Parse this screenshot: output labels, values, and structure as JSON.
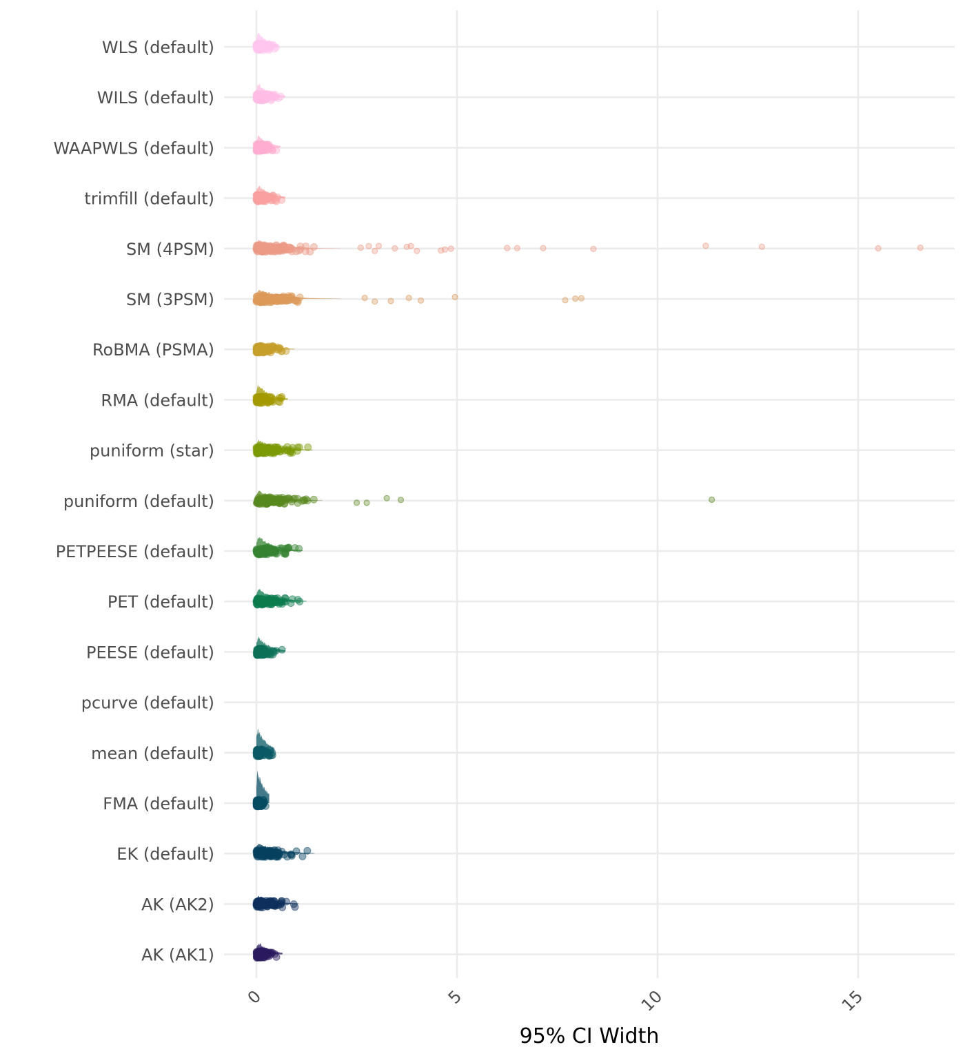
{
  "chart_data": {
    "type": "raincloud",
    "xlabel": "95% CI Width",
    "ylabel": "",
    "xlim": [
      -0.8,
      17.5
    ],
    "x_ticks": [
      0,
      5,
      10,
      15
    ],
    "grid": true,
    "legend": "none",
    "categories": [
      {
        "name": "WLS (default)",
        "color": "#FFC6F0",
        "density_peak": 0.05,
        "density_height": 1.0,
        "main_max": 0.55,
        "outliers": []
      },
      {
        "name": "WILS (default)",
        "color": "#FFBDE6",
        "density_peak": 0.06,
        "density_height": 0.95,
        "main_max": 0.72,
        "outliers": []
      },
      {
        "name": "WAAPWLS (default)",
        "color": "#FFADD0",
        "density_peak": 0.05,
        "density_height": 0.85,
        "main_max": 0.6,
        "outliers": []
      },
      {
        "name": "trimfill (default)",
        "color": "#F9A0A0",
        "density_peak": 0.06,
        "density_height": 0.9,
        "main_max": 0.72,
        "outliers": []
      },
      {
        "name": "SM (4PSM)",
        "color": "#EC9A86",
        "density_peak": 0.05,
        "density_height": 0.55,
        "main_max": 2.1,
        "outliers": [
          2.6,
          2.8,
          2.95,
          3.05,
          3.45,
          3.75,
          3.85,
          4.0,
          4.6,
          4.7,
          4.85,
          6.25,
          6.5,
          7.15,
          8.4,
          11.2,
          12.6,
          15.5,
          16.55
        ]
      },
      {
        "name": "SM (3PSM)",
        "color": "#DB9959",
        "density_peak": 0.06,
        "density_height": 0.65,
        "main_max": 2.1,
        "outliers": [
          2.7,
          2.95,
          3.35,
          3.8,
          4.1,
          4.95,
          7.7,
          7.95,
          8.1
        ]
      },
      {
        "name": "RoBMA (PSMA)",
        "color": "#C69E2A",
        "density_peak": 0.08,
        "density_height": 0.55,
        "main_max": 0.95,
        "outliers": []
      },
      {
        "name": "RMA (default)",
        "color": "#A49A00",
        "density_peak": 0.05,
        "density_height": 1.0,
        "main_max": 0.78,
        "outliers": []
      },
      {
        "name": "puniform (star)",
        "color": "#7B9A06",
        "density_peak": 0.06,
        "density_height": 0.7,
        "main_max": 1.4,
        "outliers": []
      },
      {
        "name": "puniform (default)",
        "color": "#58881E",
        "density_peak": 0.06,
        "density_height": 0.65,
        "main_max": 1.65,
        "outliers": [
          2.5,
          2.75,
          3.25,
          3.6,
          11.35
        ]
      },
      {
        "name": "PETPEESE (default)",
        "color": "#358332",
        "density_peak": 0.05,
        "density_height": 1.0,
        "main_max": 1.15,
        "outliers": []
      },
      {
        "name": "PET (default)",
        "color": "#0C7B4D",
        "density_peak": 0.06,
        "density_height": 0.85,
        "main_max": 1.25,
        "outliers": []
      },
      {
        "name": "PEESE (default)",
        "color": "#0C7058",
        "density_peak": 0.05,
        "density_height": 1.05,
        "main_max": 0.72,
        "outliers": []
      },
      {
        "name": "pcurve (default)",
        "color": "#0F6663",
        "density_peak": 0.05,
        "density_height": 0.0,
        "main_max": 0.0,
        "outliers": []
      },
      {
        "name": "mean (default)",
        "color": "#0A5A66",
        "density_peak": 0.03,
        "density_height": 1.6,
        "main_max": 0.45,
        "outliers": []
      },
      {
        "name": "FMA (default)",
        "color": "#054C62",
        "density_peak": 0.02,
        "density_height": 2.1,
        "main_max": 0.32,
        "outliers": []
      },
      {
        "name": "EK (default)",
        "color": "#05415F",
        "density_peak": 0.07,
        "density_height": 0.75,
        "main_max": 1.45,
        "outliers": []
      },
      {
        "name": "AK (AK2)",
        "color": "#0E2F5C",
        "density_peak": 0.08,
        "density_height": 0.6,
        "main_max": 1.05,
        "outliers": []
      },
      {
        "name": "AK (AK1)",
        "color": "#2A1A5E",
        "density_peak": 0.06,
        "density_height": 0.85,
        "main_max": 0.65,
        "outliers": []
      }
    ]
  }
}
